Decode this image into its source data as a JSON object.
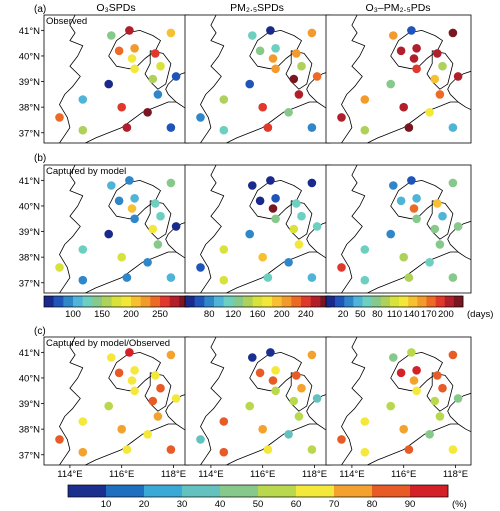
{
  "column_titles": [
    "O₃SPDs",
    "PM₂.₅SPDs",
    "O₃–PM₂.₅PDs"
  ],
  "rows": [
    {
      "label": "(a)",
      "caption": "Observed"
    },
    {
      "label": "(b)",
      "caption": "Captured by model"
    },
    {
      "label": "(c)",
      "caption": "Captured by model/Observed"
    }
  ],
  "lat_labels": [
    "41°N",
    "40°N",
    "39°N",
    "38°N",
    "37°N"
  ],
  "lon_labels": [
    "114°E",
    "116°E",
    "118°E"
  ],
  "colorbars_days": [
    {
      "ticks": [
        "100",
        "150",
        "200",
        "250"
      ]
    },
    {
      "ticks": [
        "80",
        "120",
        "160",
        "200",
        "240"
      ]
    },
    {
      "ticks": [
        "20",
        "50",
        "80",
        "110",
        "140",
        "170",
        "200"
      ],
      "unit": "(days)"
    }
  ],
  "colorbar_pct": {
    "ticks": [
      "10",
      "20",
      "30",
      "40",
      "50",
      "60",
      "70",
      "80",
      "90"
    ],
    "unit": "(%)"
  },
  "palettes": {
    "days": [
      "#1a2a8c",
      "#1f55b8",
      "#2f86c8",
      "#4fb4d8",
      "#6ccfc0",
      "#86c98a",
      "#aed15a",
      "#d9e23a",
      "#f3e83a",
      "#f6c030",
      "#f29a2c",
      "#ec6a26",
      "#e0382a",
      "#b01f2a",
      "#7a1620"
    ],
    "pct": [
      "#1b2f8f",
      "#1f6fc0",
      "#3aa9d8",
      "#63c2c0",
      "#86c98a",
      "#b9d84e",
      "#f4e83a",
      "#f3a32d",
      "#e85b27",
      "#d42027"
    ]
  },
  "stations_lonlat": [
    [
      115.6,
      40.8
    ],
    [
      116.3,
      41.0
    ],
    [
      117.9,
      40.9
    ],
    [
      115.9,
      40.2
    ],
    [
      116.5,
      40.3
    ],
    [
      117.3,
      40.1
    ],
    [
      116.4,
      39.9
    ],
    [
      117.5,
      39.6
    ],
    [
      116.5,
      39.5
    ],
    [
      117.2,
      39.1
    ],
    [
      118.1,
      39.2
    ],
    [
      115.5,
      38.9
    ],
    [
      117.4,
      38.5
    ],
    [
      114.5,
      38.3
    ],
    [
      116.0,
      38.0
    ],
    [
      117.0,
      37.8
    ],
    [
      113.6,
      37.6
    ],
    [
      114.5,
      37.1
    ],
    [
      116.2,
      37.2
    ],
    [
      117.9,
      37.2
    ]
  ],
  "station_values": [
    [
      [
        165,
        262,
        205,
        235,
        215,
        240,
        200,
        185,
        192,
        168,
        112,
        85,
        120,
        140,
        245,
        270,
        237,
        168,
        255,
        110
      ],
      [
        125,
        78,
        200,
        140,
        120,
        200,
        190,
        150,
        200,
        239,
        210,
        90,
        230,
        150,
        224,
        135,
        100,
        120,
        220,
        95
      ],
      [
        145,
        30,
        200,
        190,
        185,
        180,
        180,
        100,
        170,
        130,
        185,
        75,
        165,
        150,
        190,
        120,
        185,
        100,
        200,
        60
      ]
    ],
    [
      [
        140,
        125,
        160,
        125,
        140,
        150,
        210,
        145,
        120,
        200,
        100,
        95,
        160,
        150,
        180,
        130,
        180,
        128,
        125,
        135
      ],
      [
        80,
        80,
        80,
        80,
        90,
        120,
        240,
        120,
        140,
        160,
        120,
        100,
        175,
        160,
        180,
        100,
        90,
        160,
        120,
        110
      ],
      [
        40,
        30,
        80,
        50,
        60,
        130,
        160,
        60,
        80,
        80,
        80,
        40,
        80,
        70,
        90,
        70,
        170,
        65,
        90,
        80
      ]
    ],
    [
      [
        60,
        95,
        70,
        80,
        60,
        65,
        60,
        85,
        60,
        80,
        65,
        55,
        75,
        65,
        70,
        60,
        85,
        68,
        65,
        85
      ],
      [
        10,
        10,
        70,
        85,
        65,
        85,
        80,
        70,
        50,
        55,
        40,
        50,
        55,
        85,
        70,
        40,
        40,
        80,
        65,
        55
      ],
      [
        45,
        50,
        85,
        90,
        95,
        85,
        70,
        80,
        65,
        55,
        45,
        55,
        55,
        65,
        70,
        45,
        85,
        65,
        85,
        65
      ]
    ]
  ],
  "row_value_ranges": [
    [
      [
        95,
        275
      ],
      [
        70,
        250
      ],
      [
        10,
        205
      ]
    ],
    [
      [
        95,
        275
      ],
      [
        70,
        250
      ],
      [
        10,
        205
      ]
    ],
    [
      [
        5,
        95
      ],
      [
        5,
        95
      ],
      [
        5,
        95
      ]
    ]
  ]
}
